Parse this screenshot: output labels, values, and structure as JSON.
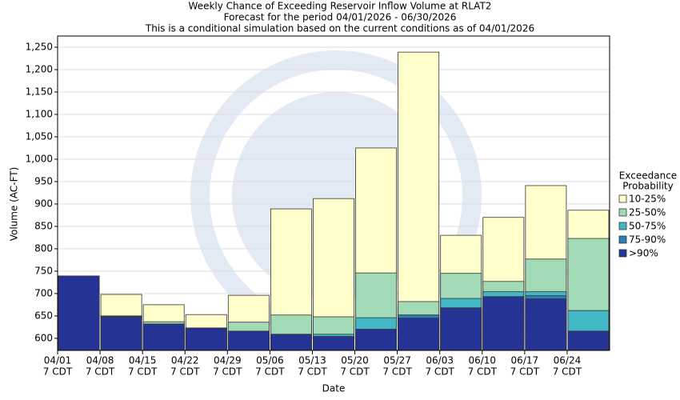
{
  "chart_data": {
    "type": "overlap_bar",
    "title": [
      "Weekly Chance of Exceeding Reservoir Inflow Volume at RLAT2",
      "Forecast for the period 04/01/2026 - 06/30/2026",
      "This is a conditional simulation based on the current conditions as of 04/01/2026"
    ],
    "y_label": "Volume (AC-FT)",
    "x_label": "Date",
    "legend_title": [
      "Exceedance",
      "Probability"
    ],
    "categories": [
      [
        "04/01",
        "7 CDT"
      ],
      [
        "04/08",
        "7 CDT"
      ],
      [
        "04/15",
        "7 CDT"
      ],
      [
        "04/22",
        "7 CDT"
      ],
      [
        "04/29",
        "7 CDT"
      ],
      [
        "05/06",
        "7 CDT"
      ],
      [
        "05/13",
        "7 CDT"
      ],
      [
        "05/20",
        "7 CDT"
      ],
      [
        "05/27",
        "7 CDT"
      ],
      [
        "06/03",
        "7 CDT"
      ],
      [
        "06/10",
        "7 CDT"
      ],
      [
        "06/17",
        "7 CDT"
      ],
      [
        "06/24",
        "7 CDT"
      ]
    ],
    "series": [
      {
        "name": "10-25%",
        "color": "#ffffcc",
        "values": [
          739,
          698,
          675,
          653,
          696,
          889,
          912,
          1025,
          1239,
          830,
          870,
          941,
          886
        ]
      },
      {
        "name": "25-50%",
        "color": "#a1dab4",
        "values": [
          739,
          650,
          637,
          623,
          636,
          652,
          648,
          746,
          682,
          745,
          727,
          777,
          823
        ]
      },
      {
        "name": "50-75%",
        "color": "#41b6c4",
        "values": [
          739,
          650,
          632,
          623,
          616,
          609,
          609,
          646,
          652,
          689,
          704,
          704,
          662
        ]
      },
      {
        "name": "75-90%",
        "color": "#2c7fb8",
        "values": [
          739,
          649,
          632,
          623,
          616,
          609,
          604,
          620,
          652,
          668,
          693,
          695,
          616
        ]
      },
      {
        "name": ">90%",
        "color": "#253494",
        "values": [
          739,
          648,
          632,
          623,
          616,
          609,
          604,
          620,
          645,
          668,
          693,
          688,
          616
        ]
      }
    ],
    "ylim": [
      573,
      1275
    ],
    "yticks": [
      600,
      650,
      700,
      750,
      800,
      850,
      900,
      950,
      {
        "value": 1000,
        "label": "1,000"
      },
      {
        "value": 1050,
        "label": "1,050"
      },
      {
        "value": 1100,
        "label": "1,100"
      },
      {
        "value": 1150,
        "label": "1,150"
      },
      {
        "value": 1200,
        "label": "1,200"
      },
      {
        "value": 1250,
        "label": "1,250"
      }
    ],
    "grid": true
  }
}
